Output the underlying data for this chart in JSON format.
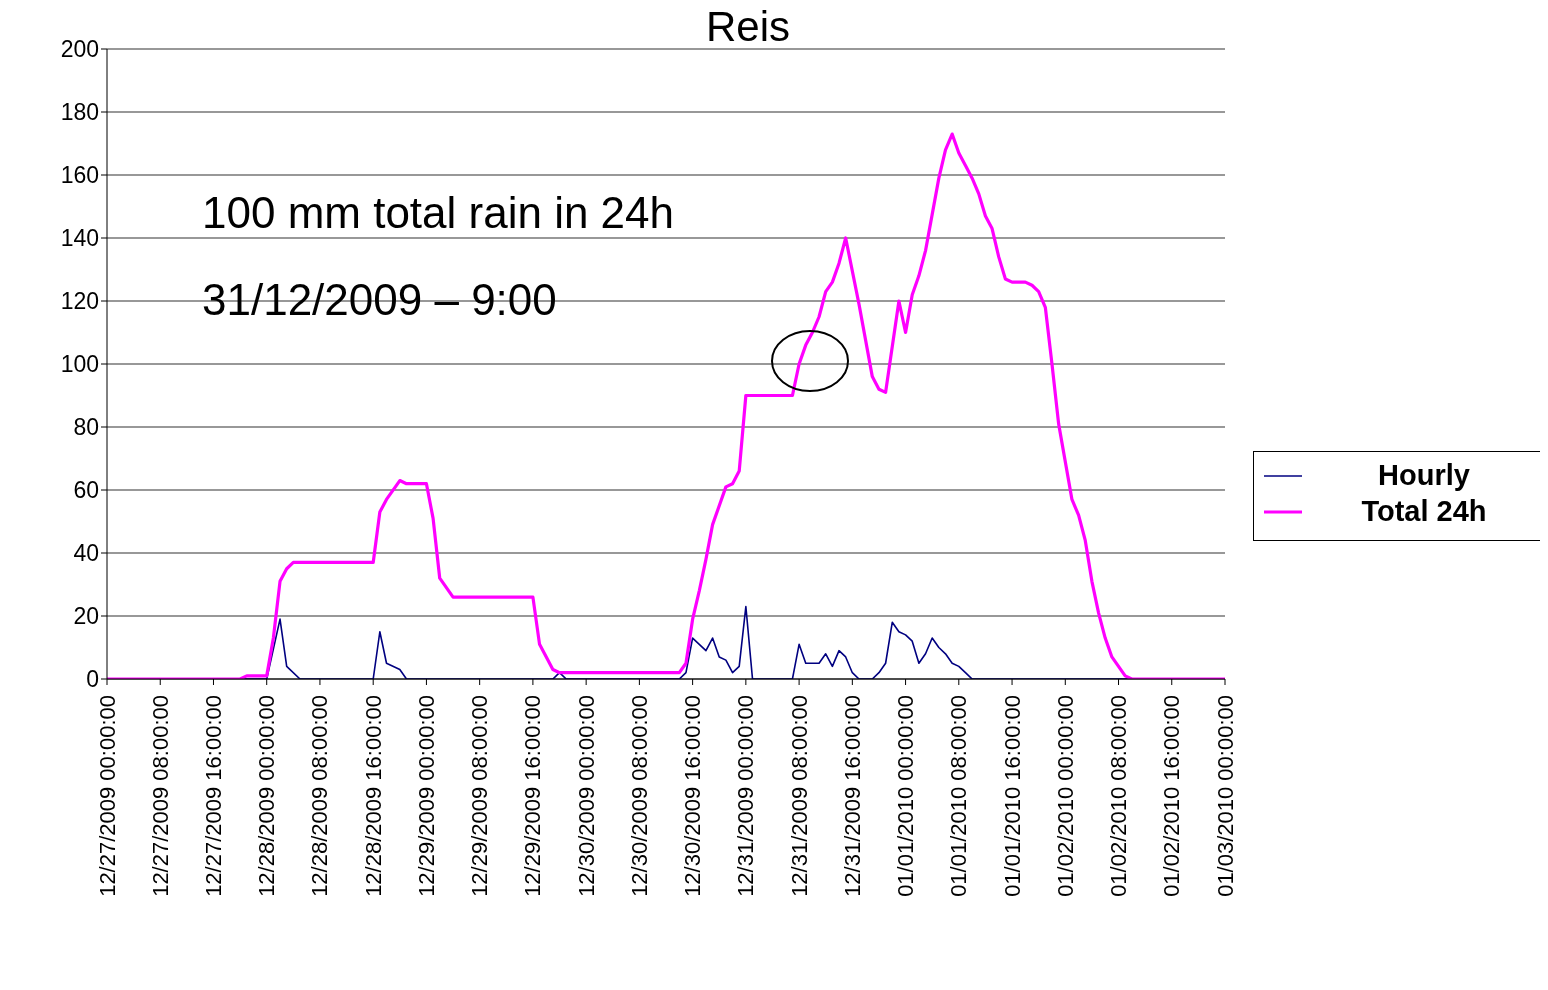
{
  "chart_data": {
    "type": "line",
    "title": "Reis",
    "annotations": [
      "100 mm total rain in 24h",
      "31/12/2009 – 9:00"
    ],
    "xlim": [
      "2009-12-27T00:00",
      "2010-01-03T00:00"
    ],
    "xticks": [
      {
        "value": "2009-12-27T00:00",
        "label": "12/27/2009 00:00:00"
      },
      {
        "value": "2009-12-27T08:00",
        "label": "12/27/2009 08:00:00"
      },
      {
        "value": "2009-12-27T16:00",
        "label": "12/27/2009 16:00:00"
      },
      {
        "value": "2009-12-28T00:00",
        "label": "12/28/2009 00:00:00"
      },
      {
        "value": "2009-12-28T08:00",
        "label": "12/28/2009 08:00:00"
      },
      {
        "value": "2009-12-28T16:00",
        "label": "12/28/2009 16:00:00"
      },
      {
        "value": "2009-12-29T00:00",
        "label": "12/29/2009 00:00:00"
      },
      {
        "value": "2009-12-29T08:00",
        "label": "12/29/2009 08:00:00"
      },
      {
        "value": "2009-12-29T16:00",
        "label": "12/29/2009 16:00:00"
      },
      {
        "value": "2009-12-30T00:00",
        "label": "12/30/2009 00:00:00"
      },
      {
        "value": "2009-12-30T08:00",
        "label": "12/30/2009 08:00:00"
      },
      {
        "value": "2009-12-30T16:00",
        "label": "12/30/2009 16:00:00"
      },
      {
        "value": "2009-12-31T00:00",
        "label": "12/31/2009 00:00:00"
      },
      {
        "value": "2009-12-31T08:00",
        "label": "12/31/2009 08:00:00"
      },
      {
        "value": "2009-12-31T16:00",
        "label": "12/31/2009 16:00:00"
      },
      {
        "value": "2010-01-01T00:00",
        "label": "01/01/2010 00:00:00"
      },
      {
        "value": "2010-01-01T08:00",
        "label": "01/01/2010 08:00:00"
      },
      {
        "value": "2010-01-01T16:00",
        "label": "01/01/2010 16:00:00"
      },
      {
        "value": "2010-01-02T00:00",
        "label": "01/02/2010 00:00:00"
      },
      {
        "value": "2010-01-02T08:00",
        "label": "01/02/2010 08:00:00"
      },
      {
        "value": "2010-01-02T16:00",
        "label": "01/02/2010 16:00:00"
      },
      {
        "value": "2010-01-03T00:00",
        "label": "01/03/2010 00:00:00"
      }
    ],
    "ylim": [
      0,
      200
    ],
    "yticks": [
      0,
      20,
      40,
      60,
      80,
      100,
      120,
      140,
      160,
      180,
      200
    ],
    "grid": "y",
    "legend": "right",
    "series": [
      {
        "name": "Hourly",
        "color": "#000080",
        "x": [
          "2009-12-27T00:00",
          "2009-12-28T00:00",
          "2009-12-28T02:00",
          "2009-12-28T03:00",
          "2009-12-28T05:00",
          "2009-12-28T16:00",
          "2009-12-28T17:00",
          "2009-12-28T18:00",
          "2009-12-28T20:00",
          "2009-12-28T21:00",
          "2009-12-29T19:00",
          "2009-12-29T20:00",
          "2009-12-29T21:00",
          "2009-12-30T14:00",
          "2009-12-30T15:00",
          "2009-12-30T16:00",
          "2009-12-30T17:00",
          "2009-12-30T18:00",
          "2009-12-30T19:00",
          "2009-12-30T20:00",
          "2009-12-30T21:00",
          "2009-12-30T22:00",
          "2009-12-30T23:00",
          "2009-12-31T00:00",
          "2009-12-31T01:00",
          "2009-12-31T07:00",
          "2009-12-31T08:00",
          "2009-12-31T09:00",
          "2009-12-31T10:00",
          "2009-12-31T11:00",
          "2009-12-31T12:00",
          "2009-12-31T13:00",
          "2009-12-31T14:00",
          "2009-12-31T15:00",
          "2009-12-31T16:00",
          "2009-12-31T17:00",
          "2009-12-31T19:00",
          "2009-12-31T20:00",
          "2009-12-31T21:00",
          "2009-12-31T22:00",
          "2009-12-31T23:00",
          "2010-01-01T00:00",
          "2010-01-01T01:00",
          "2010-01-01T02:00",
          "2010-01-01T03:00",
          "2010-01-01T04:00",
          "2010-01-01T05:00",
          "2010-01-01T06:00",
          "2010-01-01T07:00",
          "2010-01-01T08:00",
          "2010-01-01T09:00",
          "2010-01-01T10:00",
          "2010-01-03T00:00"
        ],
        "values": [
          0,
          0,
          19,
          4,
          0,
          0,
          15,
          5,
          3,
          0,
          0,
          2,
          0,
          0,
          2,
          13,
          11,
          9,
          13,
          7,
          6,
          2,
          4,
          23,
          0,
          0,
          11,
          5,
          5,
          5,
          8,
          4,
          9,
          7,
          2,
          0,
          0,
          2,
          5,
          18,
          15,
          14,
          12,
          5,
          8,
          13,
          10,
          8,
          5,
          4,
          2,
          0,
          0
        ]
      },
      {
        "name": "Total 24h",
        "color": "#ff00ff",
        "x": [
          "2009-12-27T00:00",
          "2009-12-27T20:00",
          "2009-12-27T21:00",
          "2009-12-28T00:00",
          "2009-12-28T01:00",
          "2009-12-28T02:00",
          "2009-12-28T03:00",
          "2009-12-28T04:00",
          "2009-12-28T16:00",
          "2009-12-28T17:00",
          "2009-12-28T18:00",
          "2009-12-28T20:00",
          "2009-12-28T21:00",
          "2009-12-29T00:00",
          "2009-12-29T01:00",
          "2009-12-29T02:00",
          "2009-12-29T04:00",
          "2009-12-29T16:00",
          "2009-12-29T17:00",
          "2009-12-29T19:00",
          "2009-12-29T20:00",
          "2009-12-30T14:00",
          "2009-12-30T15:00",
          "2009-12-30T16:00",
          "2009-12-30T17:00",
          "2009-12-30T18:00",
          "2009-12-30T19:00",
          "2009-12-30T21:00",
          "2009-12-30T22:00",
          "2009-12-30T23:00",
          "2009-12-31T00:00",
          "2009-12-31T07:00",
          "2009-12-31T08:00",
          "2009-12-31T09:00",
          "2009-12-31T10:00",
          "2009-12-31T11:00",
          "2009-12-31T12:00",
          "2009-12-31T13:00",
          "2009-12-31T14:00",
          "2009-12-31T15:00",
          "2009-12-31T17:00",
          "2009-12-31T19:00",
          "2009-12-31T20:00",
          "2009-12-31T21:00",
          "2009-12-31T23:00",
          "2010-01-01T00:00",
          "2010-01-01T01:00",
          "2010-01-01T02:00",
          "2010-01-01T03:00",
          "2010-01-01T05:00",
          "2010-01-01T06:00",
          "2010-01-01T07:00",
          "2010-01-01T08:00",
          "2010-01-01T09:00",
          "2010-01-01T10:00",
          "2010-01-01T11:00",
          "2010-01-01T12:00",
          "2010-01-01T13:00",
          "2010-01-01T14:00",
          "2010-01-01T15:00",
          "2010-01-01T16:00",
          "2010-01-01T18:00",
          "2010-01-01T19:00",
          "2010-01-01T20:00",
          "2010-01-01T21:00",
          "2010-01-01T22:00",
          "2010-01-01T23:00",
          "2010-01-02T01:00",
          "2010-01-02T02:00",
          "2010-01-02T03:00",
          "2010-01-02T04:00",
          "2010-01-02T05:00",
          "2010-01-02T06:00",
          "2010-01-02T07:00",
          "2010-01-02T09:00",
          "2010-01-02T10:00",
          "2010-01-03T00:00"
        ],
        "values": [
          0,
          0,
          1,
          1,
          13,
          31,
          35,
          37,
          37,
          53,
          57,
          63,
          62,
          62,
          51,
          32,
          26,
          26,
          11,
          3,
          2,
          2,
          5,
          19,
          28,
          38,
          49,
          61,
          62,
          66,
          90,
          90,
          100,
          106,
          110,
          115,
          123,
          126,
          132,
          140,
          119,
          96,
          92,
          91,
          120,
          110,
          122,
          128,
          136,
          159,
          168,
          173,
          167,
          163,
          159,
          154,
          147,
          143,
          134,
          127,
          126,
          126,
          125,
          123,
          118,
          100,
          81,
          57,
          52,
          44,
          31,
          21,
          13,
          7,
          1,
          0,
          0
        ]
      }
    ]
  }
}
